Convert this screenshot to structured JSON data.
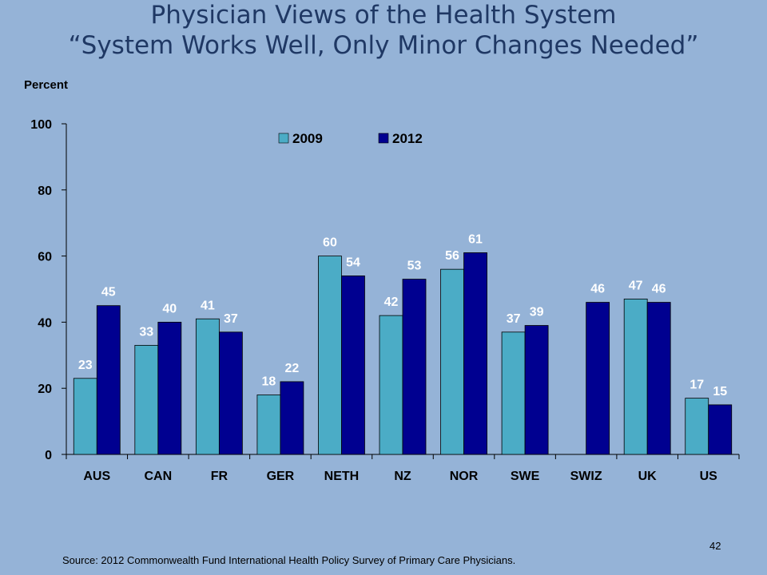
{
  "slide": {
    "title_line1": "Physician Views of the Health System",
    "title_line2": "“System Works Well, Only Minor Changes Needed”",
    "source": "Source: 2012 Commonwealth Fund International Health Policy Survey of Primary Care Physicians.",
    "page_number": "42"
  },
  "colors": {
    "background": "#95b3d7",
    "series_2009": "#4bacc6",
    "series_2012": "#000090",
    "title": "#1f3864"
  },
  "chart_data": {
    "type": "bar",
    "title": "",
    "xlabel": "",
    "ylabel": "Percent",
    "ylim": [
      0,
      100
    ],
    "yticks": [
      0,
      20,
      40,
      60,
      80,
      100
    ],
    "grid": false,
    "legend_position": "top",
    "categories": [
      "AUS",
      "CAN",
      "FR",
      "GER",
      "NETH",
      "NZ",
      "NOR",
      "SWE",
      "SWIZ",
      "UK",
      "US"
    ],
    "series": [
      {
        "name": "2009",
        "values": [
          23,
          33,
          41,
          18,
          60,
          42,
          56,
          37,
          null,
          47,
          17
        ]
      },
      {
        "name": "2012",
        "values": [
          45,
          40,
          37,
          22,
          54,
          53,
          61,
          39,
          46,
          46,
          15
        ]
      }
    ]
  }
}
